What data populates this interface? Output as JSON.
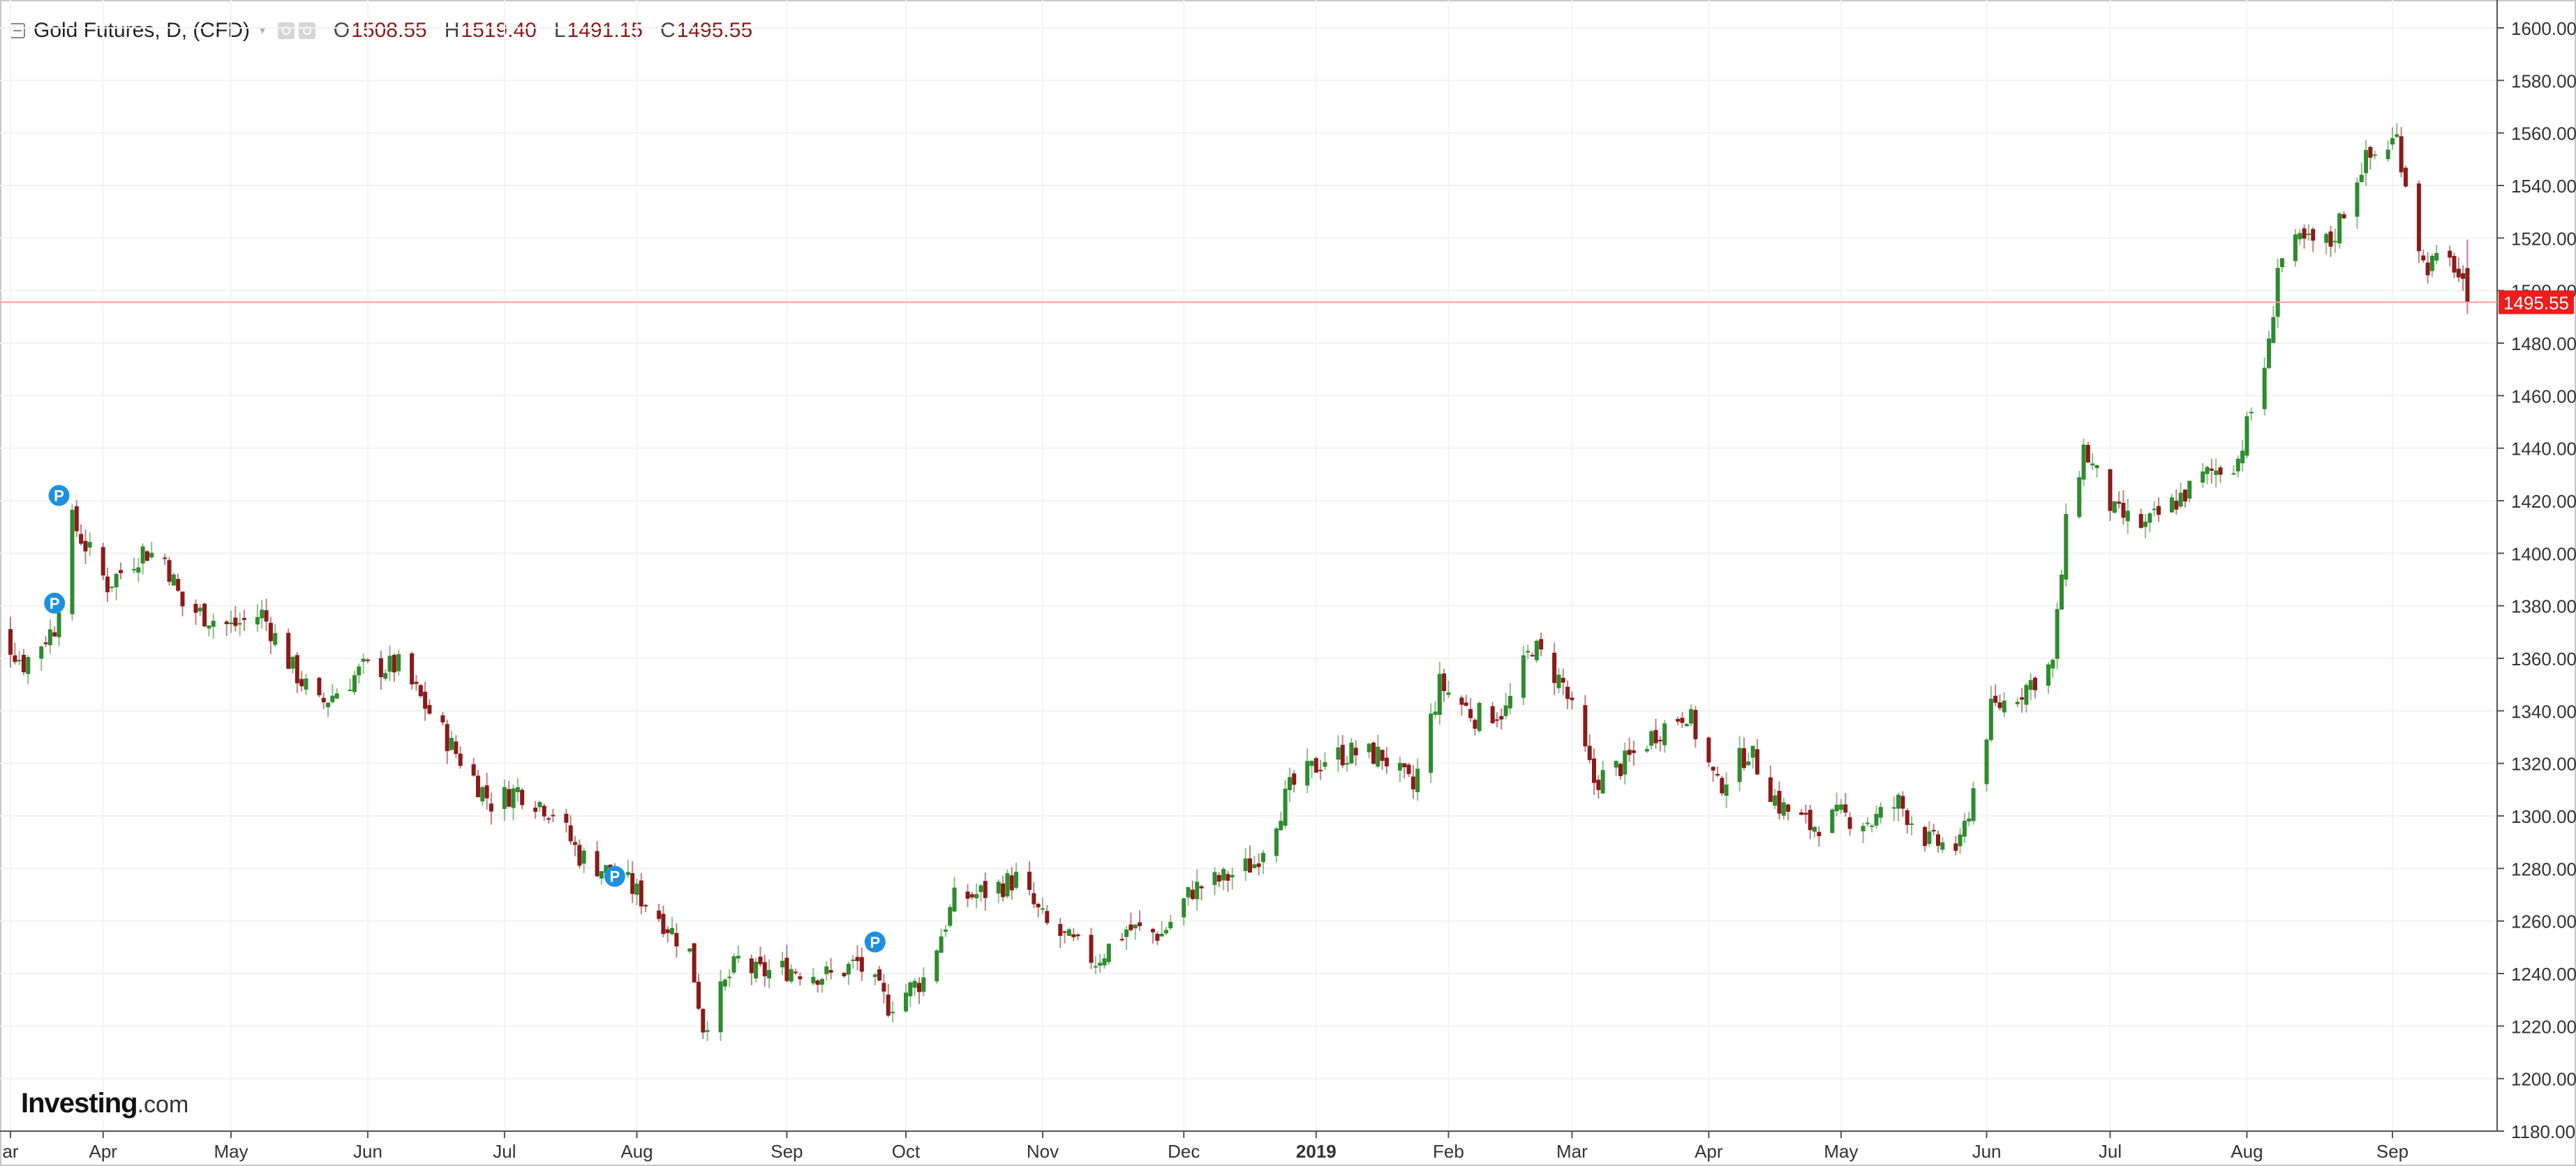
{
  "header": {
    "title": "Gold Futures, D, (CFD)",
    "open_label": "O",
    "open": "1508.55",
    "high_label": "H",
    "high": "1519.40",
    "low_label": "L",
    "low": "1491.15",
    "close_label": "C",
    "close": "1495.55"
  },
  "logo": {
    "brand": "Investing",
    "suffix": ".com"
  },
  "colors": {
    "up": "#2e8b2e",
    "down": "#8b1a1a",
    "price_line": "#ff9a9a",
    "price_tag": "#ee1c1c",
    "marker": "#1e90e0"
  },
  "chart_data": {
    "type": "candlestick",
    "title": "Gold Futures, D, (CFD)",
    "ylim": [
      1180,
      1600
    ],
    "y_ticks": [
      "1180.00",
      "1200.00",
      "1220.00",
      "1240.00",
      "1260.00",
      "1280.00",
      "1300.00",
      "1320.00",
      "1340.00",
      "1360.00",
      "1380.00",
      "1400.00",
      "1420.00",
      "1440.00",
      "1460.00",
      "1480.00",
      "1500.00",
      "1520.00",
      "1540.00",
      "1560.00",
      "1580.00",
      "1600.00"
    ],
    "x_ticks": [
      {
        "label": "ar",
        "date": "2018-03-12"
      },
      {
        "label": "Apr",
        "date": "2018-04-02"
      },
      {
        "label": "May",
        "date": "2018-05-01"
      },
      {
        "label": "Jun",
        "date": "2018-06-01"
      },
      {
        "label": "Jul",
        "date": "2018-07-02"
      },
      {
        "label": "Aug",
        "date": "2018-08-01"
      },
      {
        "label": "Sep",
        "date": "2018-09-04"
      },
      {
        "label": "Oct",
        "date": "2018-10-01"
      },
      {
        "label": "Nov",
        "date": "2018-11-01"
      },
      {
        "label": "Dec",
        "date": "2018-12-03"
      },
      {
        "label": "2019",
        "date": "2019-01-02",
        "bold": true
      },
      {
        "label": "Feb",
        "date": "2019-02-01"
      },
      {
        "label": "Mar",
        "date": "2019-03-01"
      },
      {
        "label": "Apr",
        "date": "2019-04-01"
      },
      {
        "label": "May",
        "date": "2019-05-01"
      },
      {
        "label": "Jun",
        "date": "2019-06-03"
      },
      {
        "label": "Jul",
        "date": "2019-07-01"
      },
      {
        "label": "Aug",
        "date": "2019-08-01"
      },
      {
        "label": "Sep",
        "date": "2019-09-03"
      }
    ],
    "current_price": "1495.55",
    "markers": [
      {
        "date": "2018-03-22",
        "label": "P",
        "value": 1381
      },
      {
        "date": "2018-03-23",
        "label": "P",
        "value": 1422
      },
      {
        "date": "2018-07-27",
        "label": "P",
        "value": 1277
      },
      {
        "date": "2018-09-24",
        "label": "P",
        "value": 1252
      }
    ],
    "anchors": [
      [
        "2018-03-05",
        1380
      ],
      [
        "2018-03-15",
        1358
      ],
      [
        "2018-03-22",
        1372
      ],
      [
        "2018-03-26",
        1412
      ],
      [
        "2018-04-03",
        1388
      ],
      [
        "2018-04-11",
        1401
      ],
      [
        "2018-04-16",
        1398
      ],
      [
        "2018-04-20",
        1380
      ],
      [
        "2018-05-01",
        1372
      ],
      [
        "2018-05-08",
        1377
      ],
      [
        "2018-05-15",
        1356
      ],
      [
        "2018-05-21",
        1342
      ],
      [
        "2018-05-31",
        1356
      ],
      [
        "2018-06-08",
        1357
      ],
      [
        "2018-06-14",
        1342
      ],
      [
        "2018-06-21",
        1324
      ],
      [
        "2018-06-29",
        1305
      ],
      [
        "2018-07-05",
        1310
      ],
      [
        "2018-07-13",
        1302
      ],
      [
        "2018-07-19",
        1285
      ],
      [
        "2018-07-30",
        1274
      ],
      [
        "2018-08-06",
        1262
      ],
      [
        "2018-08-13",
        1248
      ],
      [
        "2018-08-16",
        1220
      ],
      [
        "2018-08-24",
        1245
      ],
      [
        "2018-08-28",
        1240
      ],
      [
        "2018-09-05",
        1242
      ],
      [
        "2018-09-14",
        1239
      ],
      [
        "2018-09-20",
        1244
      ],
      [
        "2018-09-27",
        1228
      ],
      [
        "2018-10-05",
        1238
      ],
      [
        "2018-10-12",
        1268
      ],
      [
        "2018-10-19",
        1271
      ],
      [
        "2018-10-26",
        1276
      ],
      [
        "2018-11-02",
        1258
      ],
      [
        "2018-11-13",
        1245
      ],
      [
        "2018-11-20",
        1257
      ],
      [
        "2018-11-28",
        1255
      ],
      [
        "2018-12-05",
        1272
      ],
      [
        "2018-12-12",
        1276
      ],
      [
        "2018-12-19",
        1282
      ],
      [
        "2018-12-27",
        1310
      ],
      [
        "2019-01-04",
        1322
      ],
      [
        "2019-01-10",
        1324
      ],
      [
        "2019-01-17",
        1323
      ],
      [
        "2019-01-24",
        1310
      ],
      [
        "2019-01-30",
        1350
      ],
      [
        "2019-02-07",
        1338
      ],
      [
        "2019-02-14",
        1340
      ],
      [
        "2019-02-20",
        1365
      ],
      [
        "2019-02-27",
        1350
      ],
      [
        "2019-03-06",
        1313
      ],
      [
        "2019-03-13",
        1320
      ],
      [
        "2019-03-20",
        1332
      ],
      [
        "2019-03-27",
        1340
      ],
      [
        "2019-04-03",
        1311
      ],
      [
        "2019-04-10",
        1325
      ],
      [
        "2019-04-17",
        1304
      ],
      [
        "2019-04-24",
        1296
      ],
      [
        "2019-05-01",
        1300
      ],
      [
        "2019-05-08",
        1298
      ],
      [
        "2019-05-14",
        1305
      ],
      [
        "2019-05-21",
        1290
      ],
      [
        "2019-05-28",
        1288
      ],
      [
        "2019-06-04",
        1340
      ],
      [
        "2019-06-11",
        1348
      ],
      [
        "2019-06-18",
        1358
      ],
      [
        "2019-06-21",
        1410
      ],
      [
        "2019-06-25",
        1440
      ],
      [
        "2019-07-02",
        1415
      ],
      [
        "2019-07-09",
        1410
      ],
      [
        "2019-07-16",
        1420
      ],
      [
        "2019-07-23",
        1430
      ],
      [
        "2019-07-30",
        1436
      ],
      [
        "2019-08-06",
        1478
      ],
      [
        "2019-08-08",
        1510
      ],
      [
        "2019-08-13",
        1518
      ],
      [
        "2019-08-20",
        1518
      ],
      [
        "2019-08-27",
        1548
      ],
      [
        "2019-09-04",
        1558
      ],
      [
        "2019-09-10",
        1510
      ],
      [
        "2019-09-17",
        1510
      ],
      [
        "2019-09-20",
        1495
      ]
    ],
    "last_bar": {
      "open": 1508.55,
      "high": 1519.4,
      "low": 1491.15,
      "close": 1495.55
    }
  }
}
